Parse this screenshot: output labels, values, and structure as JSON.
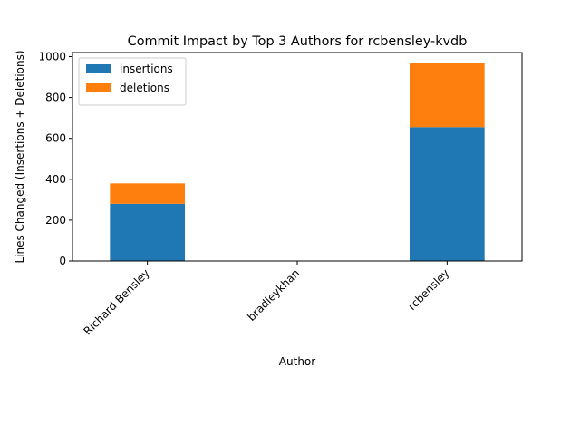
{
  "chart_data": {
    "type": "bar",
    "stacked": true,
    "title": "Commit Impact by Top 3 Authors for rcbensley-kvdb",
    "xlabel": "Author",
    "ylabel": "Lines Changed (Insertions + Deletions)",
    "categories": [
      "Richard Bensley",
      "bradleykhan",
      "rcbensley"
    ],
    "series": [
      {
        "name": "insertions",
        "color": "#1f77b4",
        "values": [
          280,
          0,
          655
        ]
      },
      {
        "name": "deletions",
        "color": "#ff7f0e",
        "values": [
          100,
          0,
          313
        ]
      }
    ],
    "ylim": [
      0,
      1020
    ],
    "yticks": [
      0,
      200,
      400,
      600,
      800,
      1000
    ],
    "grid": false,
    "legend_position": "top-left"
  }
}
